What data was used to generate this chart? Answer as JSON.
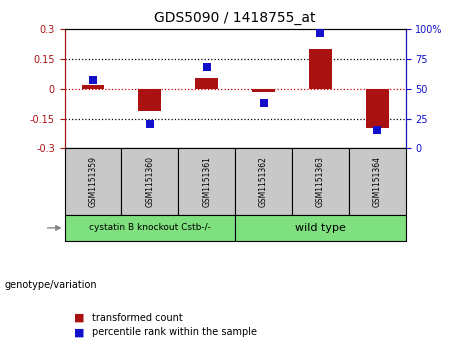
{
  "title": "GDS5090 / 1418755_at",
  "samples": [
    "GSM1151359",
    "GSM1151360",
    "GSM1151361",
    "GSM1151362",
    "GSM1151363",
    "GSM1151364"
  ],
  "transformed_count": [
    0.02,
    -0.11,
    0.055,
    -0.015,
    0.2,
    -0.2
  ],
  "percentile_rank": [
    57,
    20,
    68,
    38,
    97,
    15
  ],
  "groups": [
    {
      "label": "cystatin B knockout Cstb-/-",
      "samples_idx": [
        0,
        1,
        2
      ],
      "color": "#7EE07E"
    },
    {
      "label": "wild type",
      "samples_idx": [
        3,
        4,
        5
      ],
      "color": "#7EE07E"
    }
  ],
  "group_label_row": "genotype/variation",
  "ylim_left": [
    -0.3,
    0.3
  ],
  "ylim_right": [
    0,
    100
  ],
  "yticks_left": [
    -0.3,
    -0.15,
    0.0,
    0.15,
    0.3
  ],
  "ytick_labels_left": [
    "-0.3",
    "-0.15",
    "0",
    "0.15",
    "0.3"
  ],
  "yticks_right": [
    0,
    25,
    50,
    75,
    100
  ],
  "ytick_labels_right": [
    "0",
    "25",
    "50",
    "75",
    "100%"
  ],
  "hlines_dotted": [
    0.15,
    -0.15
  ],
  "zeroline_color": "#CC0000",
  "red_color": "#AA1111",
  "blue_color": "#1111CC",
  "bar_width": 0.4,
  "dot_size": 40,
  "legend_items": [
    "transformed count",
    "percentile rank within the sample"
  ],
  "background_color": "#ffffff",
  "sample_box_color": "#C8C8C8",
  "figsize": [
    4.61,
    3.63
  ],
  "dpi": 100
}
